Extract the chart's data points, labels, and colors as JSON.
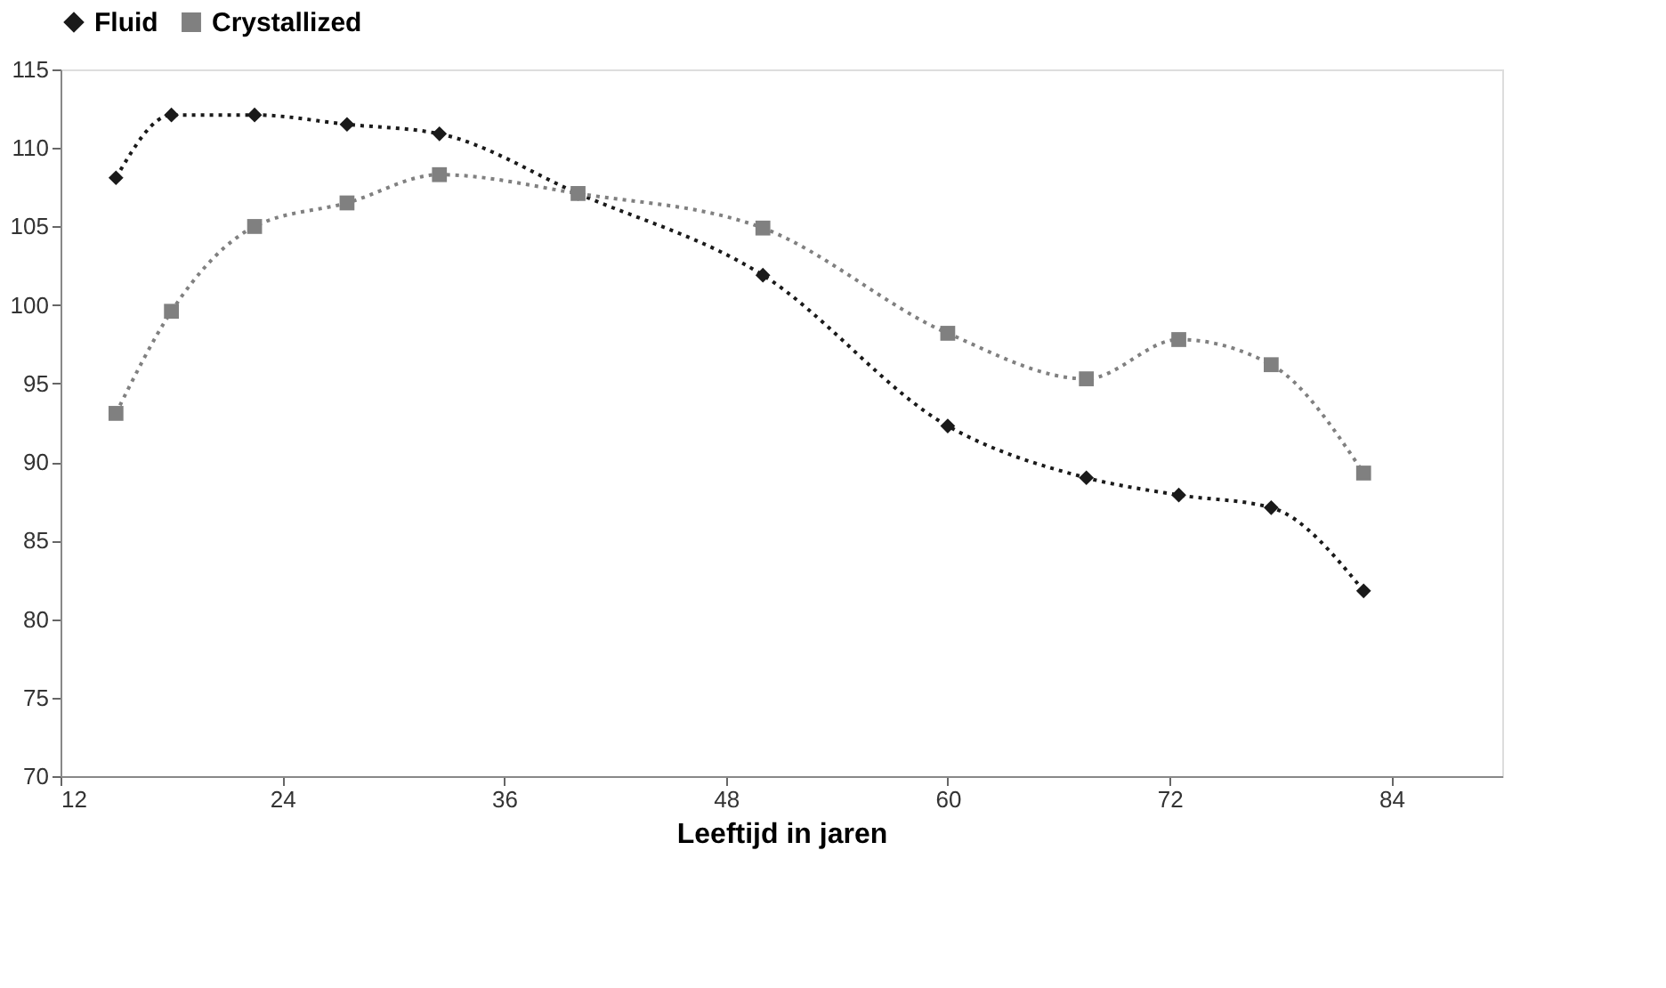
{
  "chart_data": {
    "type": "line",
    "xlabel": "Leeftijd in jaren",
    "x": [
      15,
      18,
      22.5,
      27.5,
      32.5,
      40,
      50,
      60,
      67.5,
      72.5,
      77.5,
      82.5
    ],
    "series": [
      {
        "name": "Fluid",
        "color": "#1a1a1a",
        "marker": "diamond",
        "values": [
          108.1,
          112.1,
          112.1,
          111.5,
          110.9,
          107.1,
          101.9,
          92.3,
          89.0,
          87.9,
          87.1,
          81.8
        ]
      },
      {
        "name": "Crystallized",
        "color": "#808080",
        "marker": "square",
        "values": [
          93.1,
          99.6,
          105.0,
          106.5,
          108.3,
          107.1,
          104.9,
          98.2,
          95.3,
          97.8,
          96.2,
          89.3
        ]
      }
    ],
    "xlim": [
      12,
      90
    ],
    "xticks": [
      12,
      24,
      36,
      48,
      60,
      72,
      84
    ],
    "ylim": [
      70,
      115
    ],
    "yticks": [
      70,
      75,
      80,
      85,
      90,
      95,
      100,
      105,
      110,
      115
    ],
    "line_style": "dotted",
    "legend": "top",
    "grid": false
  }
}
